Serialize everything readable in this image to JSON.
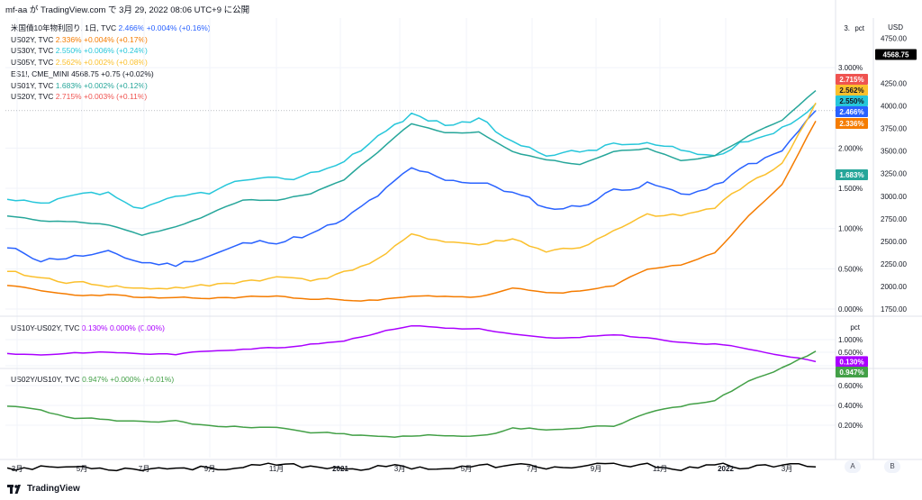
{
  "header": {
    "text": "mf-aa が TradingView.com で 3月 29, 2022 08:06 UTC+9 に公開"
  },
  "colors": {
    "bg": "#ffffff",
    "grid": "#f0f3fa",
    "us10y": "#2962ff",
    "us02y": "#f57c00",
    "us30y": "#26c6da",
    "us05y": "#fbc02d",
    "es": "#000000",
    "us01y": "#26a69a",
    "us20y": "#ef5350",
    "spread": "#aa00ff",
    "ratio": "#43a047"
  },
  "legend": [
    {
      "name": "米国債10年物利回り, 1日, TVC",
      "value": "2.466%",
      "change": "+0.004% (+0.16%)",
      "color": "#2962ff"
    },
    {
      "name": "US02Y, TVC",
      "value": "2.336%",
      "change": "+0.004% (+0.17%)",
      "color": "#f57c00"
    },
    {
      "name": "US30Y, TVC",
      "value": "2.550%",
      "change": "+0.006% (+0.24%)",
      "color": "#26c6da"
    },
    {
      "name": "US05Y, TVC",
      "value": "2.562%",
      "change": "+0.002% (+0.08%)",
      "color": "#fbc02d"
    },
    {
      "name": "ES1!, CME_MINI",
      "value": "4568.75",
      "change": "+0.75 (+0.02%)",
      "color": "#131722"
    },
    {
      "name": "US01Y, TVC",
      "value": "1.683%",
      "change": "+0.002% (+0.12%)",
      "color": "#26a69a"
    },
    {
      "name": "US20Y, TVC",
      "value": "2.715%",
      "change": "+0.003% (+0.11%)",
      "color": "#ef5350"
    }
  ],
  "legend2": {
    "name": "US10Y-US02Y, TVC",
    "value": "0.130%",
    "change": "0.000% (0.00%)",
    "color": "#aa00ff"
  },
  "legend3": {
    "name": "US02Y/US10Y, TVC",
    "value": "0.947%",
    "change": "+0.000% (+0.01%)",
    "color": "#43a047"
  },
  "axis": {
    "pct_label": "pct",
    "usd_label": "USD",
    "pct_ticks": [
      "3.000%",
      "2.000%",
      "1.500%",
      "1.000%",
      "0.500%",
      "0.000%"
    ],
    "pct_top": "3.",
    "usd_ticks": [
      "4750.00",
      "4250.00",
      "4000.00",
      "3750.00",
      "3500.00",
      "3250.00",
      "3000.00",
      "2750.00",
      "2500.00",
      "2250.00",
      "2000.00",
      "1750.00"
    ],
    "pane2_label": "pct",
    "pane2_ticks": [
      "1.000%",
      "0.500%"
    ],
    "pane3_ticks": [
      "0.800%",
      "0.600%",
      "0.400%",
      "0.200%"
    ],
    "x_ticks": [
      "3月",
      "5月",
      "7月",
      "9月",
      "11月",
      "2021",
      "3月",
      "5月",
      "7月",
      "9月",
      "11月",
      "2022",
      "3月"
    ]
  },
  "price_tags": {
    "es": "4568.75",
    "us20y": "2.715%",
    "us05y": "2.562%",
    "us30y": "2.550%",
    "us10y": "2.466%",
    "us02y": "2.336%",
    "us01y": "1.683%",
    "spread": "0.130%",
    "ratio": "0.947%"
  },
  "buttons": {
    "a": "A",
    "b": "B"
  },
  "footer": {
    "brand": "TradingView"
  },
  "chart_data": {
    "type": "line",
    "title": "米国債10年物利回り, 1日, TVC",
    "x_range": [
      "2020-03",
      "2022-03-29"
    ],
    "ylabel": "pct",
    "y2label": "USD",
    "x": [
      "2020-03",
      "2020-04",
      "2020-05",
      "2020-06",
      "2020-07",
      "2020-08",
      "2020-09",
      "2020-10",
      "2020-11",
      "2020-12",
      "2021-01",
      "2021-02",
      "2021-03",
      "2021-04",
      "2021-05",
      "2021-06",
      "2021-07",
      "2021-08",
      "2021-09",
      "2021-10",
      "2021-11",
      "2021-12",
      "2022-01",
      "2022-02",
      "2022-03"
    ],
    "series": [
      {
        "name": "米国債10年物利回り, 1日, TVC",
        "axis": "pct",
        "values": [
          0.75,
          0.62,
          0.66,
          0.68,
          0.58,
          0.55,
          0.68,
          0.8,
          0.85,
          0.93,
          1.09,
          1.4,
          1.72,
          1.62,
          1.58,
          1.45,
          1.25,
          1.28,
          1.48,
          1.57,
          1.42,
          1.52,
          1.78,
          1.95,
          2.466
        ]
      },
      {
        "name": "US02Y, TVC",
        "axis": "pct",
        "values": [
          0.3,
          0.22,
          0.17,
          0.18,
          0.14,
          0.13,
          0.13,
          0.15,
          0.16,
          0.12,
          0.12,
          0.11,
          0.15,
          0.16,
          0.15,
          0.25,
          0.2,
          0.22,
          0.28,
          0.5,
          0.55,
          0.7,
          1.15,
          1.55,
          2.336
        ]
      },
      {
        "name": "US30Y, TVC",
        "axis": "pct",
        "values": [
          1.35,
          1.27,
          1.38,
          1.42,
          1.22,
          1.35,
          1.45,
          1.6,
          1.58,
          1.68,
          1.85,
          2.15,
          2.42,
          2.3,
          2.35,
          2.05,
          1.95,
          1.95,
          2.05,
          2.05,
          1.95,
          1.9,
          2.1,
          2.25,
          2.55
        ]
      },
      {
        "name": "US05Y, TVC",
        "axis": "pct",
        "values": [
          0.45,
          0.38,
          0.33,
          0.3,
          0.25,
          0.27,
          0.28,
          0.35,
          0.39,
          0.37,
          0.45,
          0.62,
          0.9,
          0.85,
          0.8,
          0.87,
          0.72,
          0.77,
          0.95,
          1.15,
          1.15,
          1.25,
          1.58,
          1.8,
          2.562
        ]
      },
      {
        "name": "US01Y, TVC",
        "axis": "pct",
        "values": [
          0.2,
          0.15,
          0.14,
          0.15,
          0.13,
          0.12,
          0.12,
          0.12,
          0.11,
          0.09,
          0.09,
          0.06,
          0.07,
          0.06,
          0.05,
          0.08,
          0.07,
          0.07,
          0.08,
          0.12,
          0.17,
          0.3,
          0.5,
          0.95,
          1.683
        ]
      },
      {
        "name": "US20Y, TVC",
        "axis": "pct",
        "values": [
          1.15,
          1.1,
          1.08,
          1.05,
          0.92,
          1.03,
          1.18,
          1.36,
          1.35,
          1.44,
          1.6,
          1.95,
          2.3,
          2.2,
          2.2,
          1.95,
          1.85,
          1.8,
          1.95,
          2.0,
          1.85,
          1.9,
          2.15,
          2.35,
          2.715
        ]
      },
      {
        "name": "ES1!, CME_MINI",
        "axis": "usd",
        "values": [
          2500,
          2850,
          2950,
          3050,
          3250,
          3450,
          3300,
          3350,
          3600,
          3700,
          3750,
          3850,
          3950,
          4150,
          4200,
          4280,
          4400,
          4500,
          4350,
          4600,
          4650,
          4750,
          4500,
          4300,
          4568.75
        ]
      },
      {
        "name": "US10Y-US02Y, TVC",
        "axis": "pct_pane2",
        "values": [
          0.45,
          0.4,
          0.49,
          0.5,
          0.44,
          0.42,
          0.55,
          0.65,
          0.69,
          0.81,
          0.97,
          1.29,
          1.57,
          1.46,
          1.43,
          1.2,
          1.05,
          1.06,
          1.2,
          1.07,
          0.87,
          0.82,
          0.63,
          0.4,
          0.13
        ]
      },
      {
        "name": "US02Y/US10Y, TVC",
        "axis": "pct_pane3",
        "values": [
          0.4,
          0.35,
          0.26,
          0.26,
          0.24,
          0.24,
          0.19,
          0.19,
          0.19,
          0.13,
          0.11,
          0.08,
          0.09,
          0.1,
          0.09,
          0.17,
          0.16,
          0.17,
          0.19,
          0.32,
          0.39,
          0.46,
          0.65,
          0.79,
          0.947
        ]
      }
    ]
  }
}
